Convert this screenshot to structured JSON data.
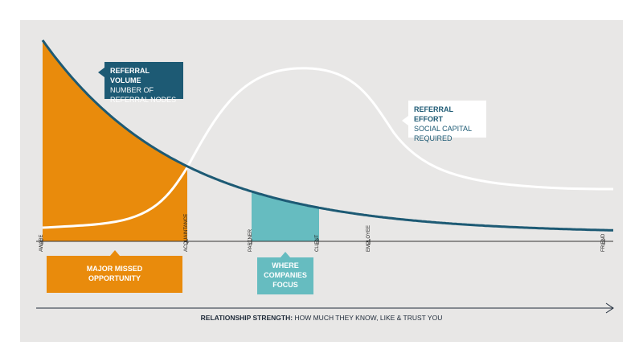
{
  "callouts": {
    "referral_volume": {
      "title": "REFERRAL VOLUME",
      "subtitle": "NUMBER OF REFERRAL NODES"
    },
    "referral_effort": {
      "title": "REFERRAL EFFORT",
      "subtitle": "SOCIAL CAPITAL REQUIRED"
    },
    "missed": {
      "label": "MAJOR MISSED OPPORTUNITY"
    },
    "focus": {
      "label": "WHERE COMPANIES FOCUS"
    }
  },
  "axis": {
    "stages": [
      "AWARE",
      "ACQUAINTANCE",
      "PARTNER",
      "CLIENT",
      "EMPLOYEE",
      "FRIEND"
    ],
    "caption_bold": "RELATIONSHIP STRENGTH:",
    "caption_rest": "HOW MUCH THEY KNOW, LIKE & TRUST YOU"
  }
}
